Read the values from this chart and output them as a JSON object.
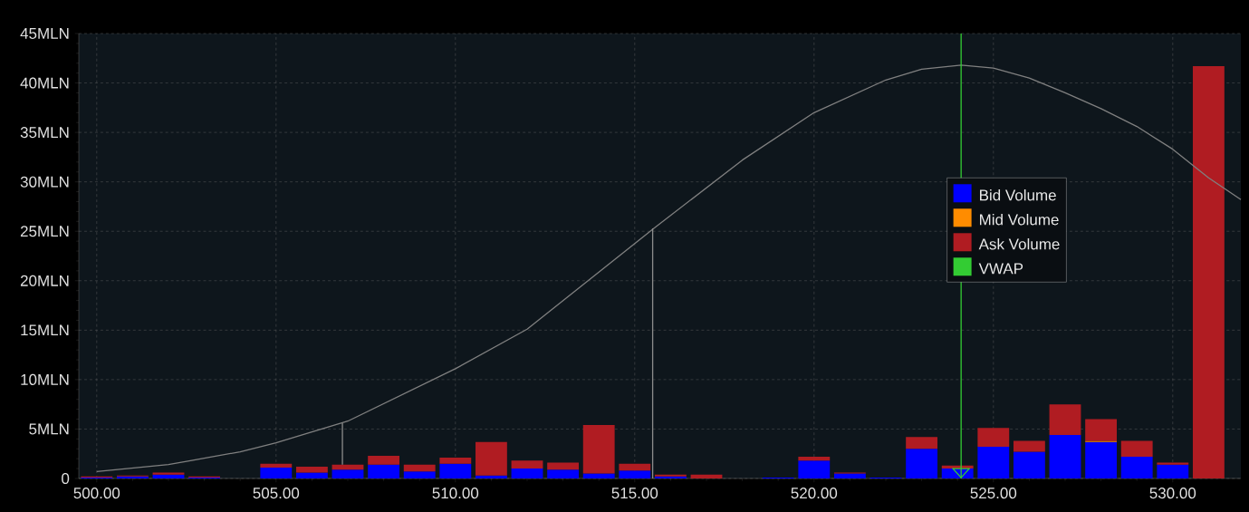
{
  "chart_data": {
    "type": "bar",
    "stacked": true,
    "x": [
      500,
      501,
      502,
      503,
      504,
      505,
      506,
      507,
      508,
      509,
      510,
      511,
      512,
      513,
      514,
      515,
      516,
      517,
      518,
      519,
      520,
      521,
      522,
      523,
      524,
      525,
      526,
      527,
      528,
      529,
      530,
      531
    ],
    "series": [
      {
        "name": "Bid Volume",
        "color": "#0000ff",
        "values": [
          0.1,
          0.2,
          0.4,
          0.1,
          0,
          1.1,
          0.6,
          0.9,
          1.4,
          0.7,
          1.5,
          0.3,
          1.0,
          0.9,
          0.5,
          0.8,
          0.2,
          0,
          0,
          0.1,
          1.8,
          0.5,
          0.1,
          3.0,
          1.0,
          3.2,
          2.7,
          4.4,
          3.7,
          2.2,
          1.4,
          0
        ]
      },
      {
        "name": "Mid Volume",
        "color": "#ff8c00",
        "values": [
          0,
          0,
          0,
          0,
          0,
          0,
          0,
          0,
          0,
          0,
          0,
          0,
          0,
          0,
          0,
          0,
          0,
          0,
          0,
          0,
          0,
          0,
          0,
          0,
          0,
          0,
          0,
          0,
          0.1,
          0,
          0,
          0
        ]
      },
      {
        "name": "Ask Volume",
        "color": "#b01c22",
        "values": [
          0.1,
          0.1,
          0.2,
          0.1,
          0,
          0.4,
          0.6,
          0.5,
          0.9,
          0.7,
          0.6,
          3.4,
          0.8,
          0.7,
          4.9,
          0.7,
          0.2,
          0.4,
          0,
          0,
          0.4,
          0.1,
          0,
          1.2,
          0.3,
          1.9,
          1.1,
          3.1,
          2.2,
          1.6,
          0.2,
          41.7
        ]
      },
      {
        "type": "line",
        "color": "#808080",
        "x": [
          500,
          502,
          504,
          505,
          507,
          510,
          512,
          515.5,
          518,
          520,
          522,
          523,
          524.1,
          525,
          526,
          527,
          528,
          529,
          530,
          531,
          531.9
        ],
        "values": [
          0.7,
          1.4,
          2.7,
          3.6,
          5.8,
          11.1,
          15.1,
          25.2,
          32.2,
          37,
          40.3,
          41.4,
          41.8,
          41.5,
          40.5,
          39,
          37.4,
          35.6,
          33.3,
          30.4,
          28.2
        ]
      },
      {
        "type": "line",
        "color": "#8c8c8c",
        "x": [
          506.85,
          506.85
        ],
        "values": [
          1.4,
          5.6
        ]
      },
      {
        "type": "line",
        "color": "#8c8c8c",
        "x": [
          515.5,
          515.5
        ],
        "values": [
          0,
          25.3
        ]
      }
    ],
    "ref_lines": [
      {
        "axis": "x",
        "value": 524.1,
        "label": "VWAP",
        "color": "#33cc33"
      }
    ],
    "xlim": [
      499.5,
      531.9
    ],
    "ylim": [
      0,
      45
    ],
    "xticks": [
      {
        "value": 500,
        "label": "500.00"
      },
      {
        "value": 505,
        "label": "505.00"
      },
      {
        "value": 510,
        "label": "510.00"
      },
      {
        "value": 515,
        "label": "515.00"
      },
      {
        "value": 520,
        "label": "520.00"
      },
      {
        "value": 525,
        "label": "525.00"
      },
      {
        "value": 530,
        "label": "530.00"
      }
    ],
    "yticks": [
      0,
      {
        "value": 5,
        "label": "5MLN"
      },
      {
        "value": 10,
        "label": "10MLN"
      },
      {
        "value": 15,
        "label": "15MLN"
      },
      {
        "value": 20,
        "label": "20MLN"
      },
      {
        "value": 25,
        "label": "25MLN"
      },
      {
        "value": 30,
        "label": "30MLN"
      },
      {
        "value": 35,
        "label": "35MLN"
      },
      {
        "value": 40,
        "label": "40MLN"
      },
      {
        "value": 45,
        "label": "45MLN"
      }
    ],
    "grid": true,
    "legend": "right"
  }
}
